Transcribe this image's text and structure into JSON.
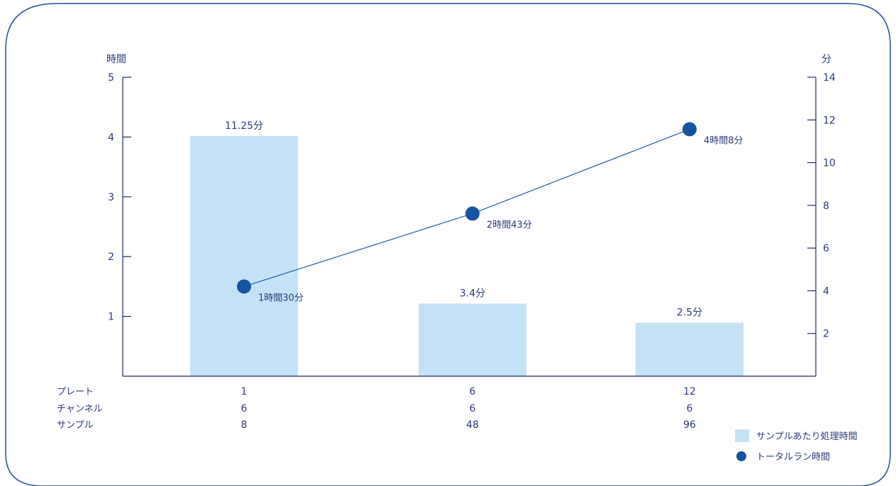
{
  "colors": {
    "frame": "#1f4f9e",
    "bar": "#c5e1f5",
    "line": "#1f5aa8",
    "marker": "#1554a0",
    "text": "#2a3a7a",
    "axis": "#1f2a5e"
  },
  "chart_data": {
    "type": "bar",
    "title": "",
    "y_left": {
      "label": "時間",
      "ticks": [
        "1",
        "2",
        "3",
        "4",
        "5"
      ],
      "range": [
        0,
        5
      ]
    },
    "y_right": {
      "label": "分",
      "ticks": [
        "2",
        "4",
        "6",
        "8",
        "10",
        "12",
        "14"
      ],
      "range": [
        0,
        14
      ]
    },
    "table_rows": [
      {
        "label": "プレート",
        "values": [
          "1",
          "6",
          "12"
        ]
      },
      {
        "label": "チャンネル",
        "values": [
          "6",
          "6",
          "6"
        ]
      },
      {
        "label": "サンプル",
        "values": [
          "8",
          "48",
          "96"
        ]
      }
    ],
    "series": [
      {
        "name": "サンプルあたり処理時間",
        "type": "bar",
        "axis": "right",
        "values": [
          11.25,
          3.4,
          2.5
        ],
        "labels": [
          "11.25分",
          "3.4分",
          "2.5分"
        ]
      },
      {
        "name": "トータルラン時間",
        "type": "line",
        "axis": "left",
        "values": [
          1.5,
          2.72,
          4.13
        ],
        "labels": [
          "1時間30分",
          "2時間43分",
          "4時間8分"
        ]
      }
    ],
    "legend": {
      "position": "bottom-right",
      "items": [
        "サンプルあたり処理時間",
        "トータルラン時間"
      ]
    },
    "grid": false
  }
}
